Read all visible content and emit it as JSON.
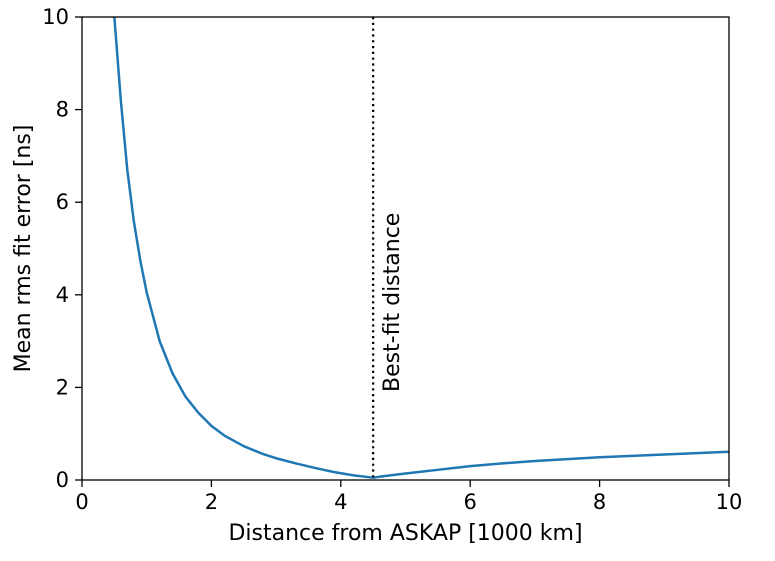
{
  "chart_data": {
    "type": "line",
    "title": "",
    "xlabel": "Distance from ASKAP [1000 km]",
    "ylabel": "Mean rms fit error [ns]",
    "xlim": [
      0,
      10
    ],
    "ylim": [
      0,
      10
    ],
    "xticks": [
      0,
      2,
      4,
      6,
      8,
      10
    ],
    "yticks": [
      0,
      2,
      4,
      6,
      8,
      10
    ],
    "grid": false,
    "series": [
      {
        "color": "#1f77b4",
        "x": [
          0.5,
          0.6,
          0.7,
          0.8,
          0.9,
          1.0,
          1.2,
          1.4,
          1.6,
          1.8,
          2.0,
          2.2,
          2.5,
          2.8,
          3.0,
          3.3,
          3.6,
          3.9,
          4.2,
          4.5,
          4.7,
          5.0,
          5.5,
          6.0,
          6.5,
          7.0,
          7.5,
          8.0,
          8.5,
          9.0,
          9.5,
          10.0
        ],
        "y": [
          10.0,
          8.2,
          6.7,
          5.6,
          4.75,
          4.05,
          3.0,
          2.3,
          1.8,
          1.45,
          1.17,
          0.96,
          0.73,
          0.56,
          0.47,
          0.36,
          0.26,
          0.17,
          0.1,
          0.05,
          0.09,
          0.14,
          0.22,
          0.3,
          0.36,
          0.41,
          0.45,
          0.49,
          0.52,
          0.55,
          0.58,
          0.61
        ]
      }
    ],
    "vline": {
      "x": 4.5,
      "style": "dotted",
      "color": "#000000",
      "label": "Best-fit distance"
    }
  }
}
